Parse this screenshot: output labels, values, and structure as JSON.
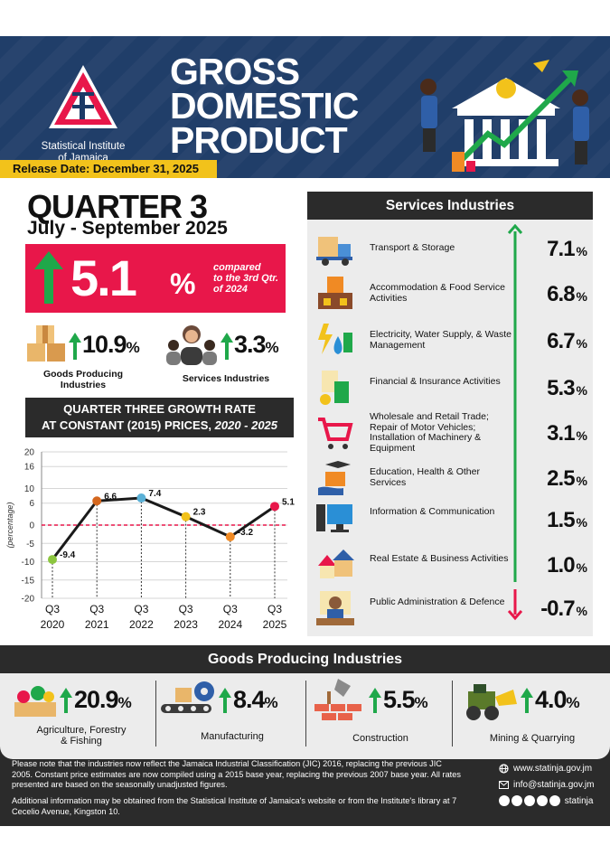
{
  "header": {
    "org_line1": "Statistical Institute",
    "org_line2": "of Jamaica",
    "title_line1": "GROSS",
    "title_line2": "DOMESTIC",
    "title_line3": "PRODUCT",
    "release": "Release Date: December 31, 2025"
  },
  "summary": {
    "quarter": "QUARTER 3",
    "period": "July - September 2025",
    "headline_value": "5.1",
    "headline_unit": "%",
    "compared_line1": "compared",
    "compared_line2": "to the 3rd Qtr.",
    "compared_line3": "of 2024",
    "goods_value": "10.9",
    "goods_unit": "%",
    "goods_label_line1": "Goods Producing",
    "goods_label_line2": "Industries",
    "services_value": "3.3",
    "services_unit": "%",
    "services_label": "Services Industries"
  },
  "chart_title": {
    "line1": "QUARTER THREE GROWTH RATE",
    "line2": "AT CONSTANT (2015) PRICES,",
    "line2_em": "2020 - 2025"
  },
  "chart_data": {
    "type": "line",
    "ylabel": "(percentage)",
    "ylim": [
      -20,
      20
    ],
    "yticks": [
      20,
      16,
      10,
      6,
      0,
      -5,
      -10,
      -15,
      -20
    ],
    "x_line1": [
      "Q3",
      "Q3",
      "Q3",
      "Q3",
      "Q3",
      "Q3"
    ],
    "x_line2": [
      "2020",
      "2021",
      "2022",
      "2023",
      "2024",
      "2025"
    ],
    "values": [
      -9.4,
      6.6,
      7.4,
      2.3,
      -3.2,
      5.1
    ],
    "labels": [
      "-9.4",
      "6.6",
      "7.4",
      "2.3",
      "-3.2",
      "5.1"
    ],
    "point_colors": [
      "#8cc63f",
      "#d4671e",
      "#5ab0d6",
      "#f2c21b",
      "#f08a24",
      "#e8174a"
    ],
    "zero_line_color": "#e8174a",
    "grid": true
  },
  "services": {
    "title": "Services Industries",
    "items": [
      {
        "label": "Transport & Storage",
        "value": "7.1",
        "unit": "%",
        "icon": "truck-icon"
      },
      {
        "label": "Accommodation & Food Service Activities",
        "value": "6.8",
        "unit": "%",
        "icon": "hotel-icon"
      },
      {
        "label": "Electricity, Water Supply, & Waste Management",
        "value": "6.7",
        "unit": "%",
        "icon": "utilities-icon"
      },
      {
        "label": "Financial & Insurance Activities",
        "value": "5.3",
        "unit": "%",
        "icon": "finance-icon"
      },
      {
        "label": "Wholesale and Retail Trade; Repair of Motor Vehicles; Installation of Machinery & Equipment",
        "value": "3.1",
        "unit": "%",
        "icon": "cart-icon"
      },
      {
        "label": "Education, Health & Other Services",
        "value": "2.5",
        "unit": "%",
        "icon": "education-icon"
      },
      {
        "label": "Information & Communication",
        "value": "1.5",
        "unit": "%",
        "icon": "computer-icon"
      },
      {
        "label": "Real Estate & Business Activities",
        "value": "1.0",
        "unit": "%",
        "icon": "houses-icon"
      },
      {
        "label": "Public Administration & Defence",
        "value": "-0.7",
        "unit": "%",
        "icon": "official-icon"
      }
    ]
  },
  "goods": {
    "title": "Goods Producing Industries",
    "items": [
      {
        "label_line1": "Agriculture, Forestry",
        "label_line2": "& Fishing",
        "value": "20.9",
        "unit": "%",
        "icon": "agriculture-icon"
      },
      {
        "label_line1": "Manufacturing",
        "label_line2": "",
        "value": "8.4",
        "unit": "%",
        "icon": "manufacturing-icon"
      },
      {
        "label_line1": "Construction",
        "label_line2": "",
        "value": "5.5",
        "unit": "%",
        "icon": "construction-icon"
      },
      {
        "label_line1": "Mining & Quarrying",
        "label_line2": "",
        "value": "4.0",
        "unit": "%",
        "icon": "mining-icon"
      }
    ]
  },
  "footer": {
    "note1": "Please note that the industries now reflect the Jamaica Industrial Classification (JIC) 2016, replacing the previous JIC 2005. Constant price estimates are now compiled using a 2015 base year, replacing the previous 2007 base year. All rates presented are based on the seasonally unadjusted figures.",
    "note2": "Additional information may be obtained from the Statistical Institute of Jamaica's website or from the Institute's library at 7 Cecelio Avenue, Kingston 10.",
    "website": "www.statinja.gov.jm",
    "email": "info@statinja.gov.jm",
    "social": "statinja"
  },
  "colors": {
    "navy": "#1c3a66",
    "red": "#e8174a",
    "green": "#1fa84a",
    "yellow": "#f2c21b",
    "dark": "#2b2b2b",
    "panel": "#ececec"
  }
}
